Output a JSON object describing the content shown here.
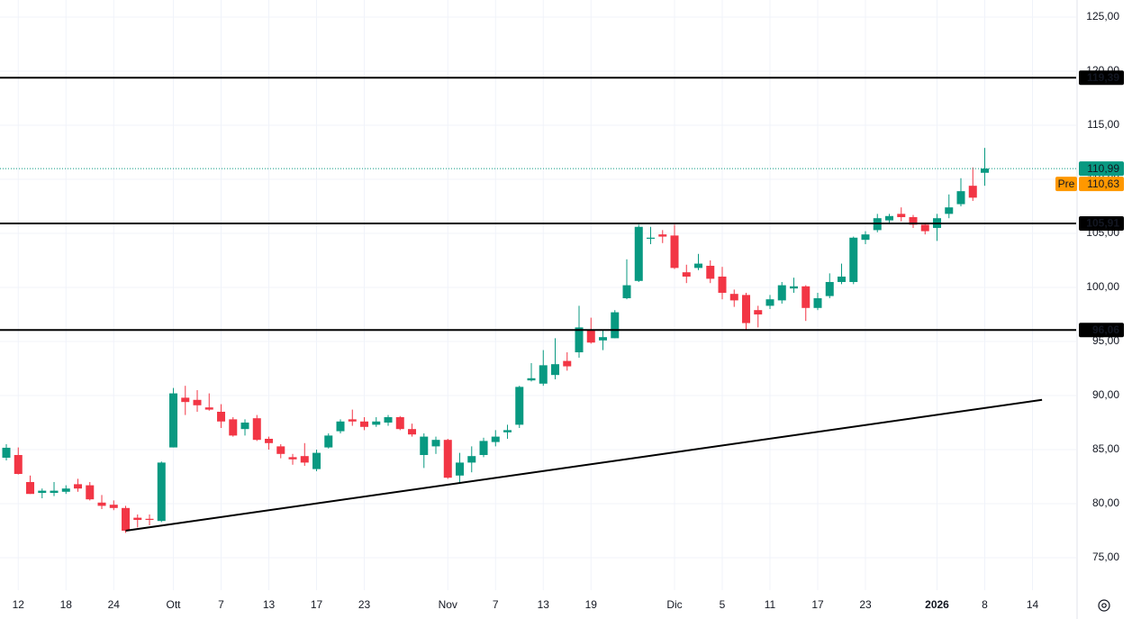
{
  "chart_data": {
    "type": "candlestick",
    "up_color": "#089981",
    "down_color": "#f23645",
    "xlim": [
      -0.53,
      89.66
    ],
    "ylim": [
      72.0,
      126.58
    ],
    "grid": true,
    "yticks": [
      {
        "value": 75,
        "label": "75,00"
      },
      {
        "value": 80,
        "label": "80,00"
      },
      {
        "value": 85,
        "label": "85,00"
      },
      {
        "value": 90,
        "label": "90,00"
      },
      {
        "value": 95,
        "label": "95,00"
      },
      {
        "value": 100,
        "label": "100,00"
      },
      {
        "value": 105,
        "label": "105,00"
      },
      {
        "value": 110,
        "label": "110,00"
      },
      {
        "value": 115,
        "label": "115,00"
      },
      {
        "value": 120,
        "label": "120,00"
      },
      {
        "value": 125,
        "label": "125,00"
      }
    ],
    "xticks": [
      {
        "value": 1,
        "label": "12"
      },
      {
        "value": 5,
        "label": "18"
      },
      {
        "value": 9,
        "label": "24"
      },
      {
        "value": 14,
        "label": "Ott"
      },
      {
        "value": 18,
        "label": "7"
      },
      {
        "value": 22,
        "label": "13"
      },
      {
        "value": 26,
        "label": "17"
      },
      {
        "value": 30,
        "label": "23"
      },
      {
        "value": 37,
        "label": "Nov"
      },
      {
        "value": 41,
        "label": "7"
      },
      {
        "value": 45,
        "label": "13"
      },
      {
        "value": 49,
        "label": "19"
      },
      {
        "value": 56,
        "label": "Dic"
      },
      {
        "value": 60,
        "label": "5"
      },
      {
        "value": 64,
        "label": "11"
      },
      {
        "value": 68,
        "label": "17"
      },
      {
        "value": 72,
        "label": "23"
      },
      {
        "value": 78,
        "label": "2026"
      },
      {
        "value": 82,
        "label": "8"
      },
      {
        "value": 86,
        "label": "14"
      }
    ],
    "open": [
      84.25,
      84.5,
      82.0,
      81.0,
      81.0,
      81.1,
      81.8,
      81.7,
      80.1,
      79.9,
      79.6,
      78.7,
      78.6,
      78.4,
      85.2,
      89.8,
      89.6,
      88.9,
      88.5,
      87.8,
      86.9,
      87.9,
      86.0,
      85.3,
      84.3,
      84.4,
      83.2,
      85.2,
      86.7,
      87.8,
      87.6,
      87.3,
      87.5,
      88.0,
      86.9,
      84.5,
      85.3,
      85.9,
      82.6,
      83.8,
      84.5,
      85.7,
      86.6,
      87.3,
      91.4,
      91.1,
      91.9,
      93.2,
      94.0,
      96.0,
      95.1,
      95.3,
      99.0,
      100.6,
      104.5,
      104.9,
      104.8,
      101.4,
      101.8,
      102.0,
      101.0,
      99.4,
      99.3,
      97.9,
      98.3,
      98.8,
      99.9,
      100.1,
      98.1,
      99.2,
      100.5,
      100.5,
      104.4,
      105.3,
      106.2,
      106.8,
      106.5,
      105.8,
      105.5,
      106.8,
      107.7,
      109.4,
      110.6
    ],
    "high": [
      85.5,
      85.2,
      82.6,
      81.4,
      82.0,
      81.7,
      82.3,
      82.0,
      80.8,
      80.3,
      79.8,
      79.0,
      79.0,
      83.9,
      90.7,
      90.9,
      90.5,
      90.2,
      89.2,
      88.0,
      87.8,
      88.2,
      86.2,
      85.5,
      84.6,
      85.6,
      85.0,
      86.5,
      87.8,
      88.7,
      88.0,
      88.0,
      88.2,
      88.1,
      87.4,
      86.5,
      86.2,
      86.0,
      84.7,
      85.3,
      86.1,
      86.8,
      87.3,
      90.9,
      93.0,
      94.2,
      95.3,
      94.0,
      98.3,
      97.2,
      96.0,
      97.9,
      102.6,
      105.8,
      105.6,
      105.3,
      105.8,
      102.1,
      103.1,
      102.5,
      101.9,
      99.8,
      99.5,
      98.3,
      99.3,
      100.5,
      100.9,
      100.2,
      99.5,
      101.3,
      102.2,
      104.7,
      105.2,
      106.8,
      106.8,
      107.4,
      106.7,
      106.0,
      106.8,
      108.6,
      110.1,
      111.1,
      112.9
    ],
    "low": [
      84.0,
      82.7,
      80.9,
      80.5,
      80.7,
      80.9,
      81.1,
      80.3,
      79.5,
      79.4,
      77.3,
      77.8,
      78.0,
      78.3,
      85.2,
      88.2,
      88.5,
      88.6,
      87.0,
      86.2,
      86.3,
      85.8,
      85.0,
      84.2,
      83.6,
      83.5,
      83.0,
      85.1,
      86.5,
      87.2,
      86.8,
      87.1,
      87.2,
      86.8,
      86.2,
      83.3,
      84.6,
      82.3,
      82.0,
      82.9,
      84.3,
      85.3,
      86.0,
      87.0,
      91.3,
      90.9,
      91.5,
      92.3,
      93.5,
      94.8,
      94.2,
      95.3,
      98.9,
      100.5,
      104.0,
      104.1,
      101.7,
      100.4,
      101.6,
      100.4,
      98.9,
      98.2,
      96.0,
      96.3,
      98.0,
      98.5,
      99.5,
      96.9,
      97.9,
      99.0,
      100.3,
      100.3,
      104.0,
      105.1,
      105.9,
      106.1,
      105.5,
      104.9,
      104.3,
      106.4,
      107.5,
      108.0,
      109.4
    ],
    "close": [
      85.17,
      82.75,
      80.9,
      81.2,
      81.2,
      81.4,
      81.4,
      80.4,
      79.8,
      79.6,
      77.5,
      78.5,
      78.5,
      83.8,
      90.2,
      89.4,
      89.1,
      88.7,
      87.6,
      86.3,
      87.5,
      85.9,
      85.6,
      84.6,
      84.1,
      83.8,
      84.7,
      86.3,
      87.6,
      87.6,
      87.1,
      87.6,
      88.0,
      86.9,
      86.4,
      86.2,
      85.9,
      82.4,
      83.8,
      84.4,
      85.8,
      86.2,
      86.8,
      90.8,
      91.6,
      92.8,
      92.9,
      92.7,
      96.3,
      94.9,
      95.4,
      97.7,
      100.2,
      105.6,
      104.6,
      104.7,
      101.8,
      101.0,
      102.2,
      100.8,
      99.5,
      98.8,
      96.7,
      97.5,
      98.9,
      100.2,
      100.1,
      98.1,
      99.0,
      100.5,
      101.0,
      104.6,
      104.9,
      106.4,
      106.6,
      106.5,
      105.8,
      105.2,
      106.4,
      107.4,
      108.9,
      108.3,
      110.99
    ],
    "levels": [
      {
        "value": 119.39,
        "label": "119,39"
      },
      {
        "value": 105.91,
        "label": "105,91"
      },
      {
        "value": 96.06,
        "label": "96,06"
      }
    ],
    "trendline": {
      "x": [
        10,
        86.8
      ],
      "y": [
        77.5,
        89.6
      ]
    },
    "last_price": {
      "value": 110.99,
      "label": "110,99"
    },
    "pre_market": {
      "tag": "Pre",
      "value": 110.63,
      "label": "110,63"
    }
  }
}
